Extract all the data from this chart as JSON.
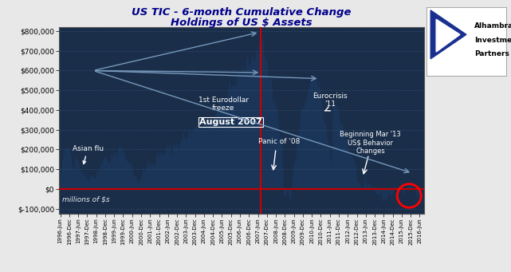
{
  "title_line1": "US TIC - 6-month Cumulative Change",
  "title_line2": "Holdings of US $ Assets",
  "ylim": [
    -125000,
    820000
  ],
  "yticks": [
    -100000,
    0,
    100000,
    200000,
    300000,
    400000,
    500000,
    600000,
    700000,
    800000
  ],
  "ytick_labels": [
    "$-100,000",
    "$0",
    "$100,000",
    "$200,000",
    "$300,000",
    "$400,000",
    "$500,000",
    "$600,000",
    "$700,000",
    "$800,000"
  ],
  "figure_bg": "#e8e8e8",
  "axes_bg": "#1a2e4a",
  "fill_color": "#1a3558",
  "zero_line_color": "#cc0000",
  "aug2007_line_color": "#cc0000",
  "title_color": "#00008b",
  "grid_color": "#3a5a7a",
  "watermark": "millions of $s",
  "logo_triangle_color": "#1a3090"
}
